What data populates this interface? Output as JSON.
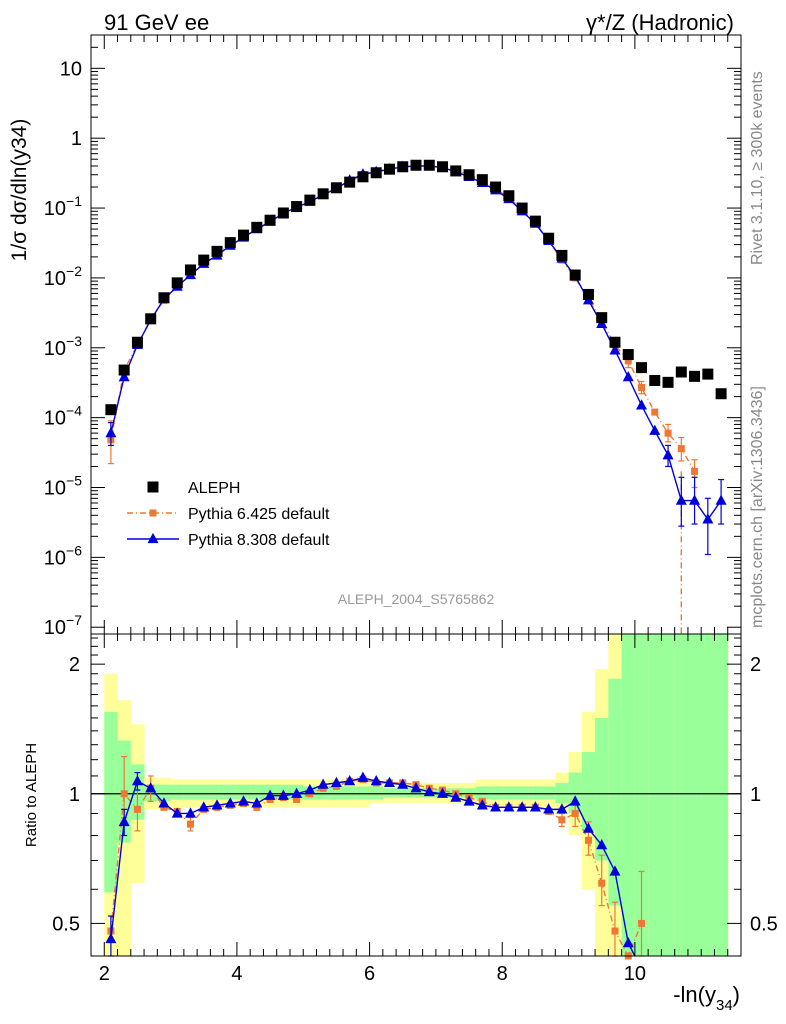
{
  "header": {
    "left": "91 GeV ee",
    "right_prefix": "γ*/Z",
    "right_suffix": "(Hadronic)"
  },
  "side": {
    "rivet_label": "Rivet 3.1.10, ≥ 300k events",
    "source_label": "mcplots.cern.ch [arXiv:1306.3436]"
  },
  "colors": {
    "aleph": "#000000",
    "pythia6": "#ee7733",
    "pythia8": "#0000dd",
    "band_inner": "#99ff99",
    "band_outer": "#ffff99"
  },
  "chart_data": [
    {
      "type": "scatter",
      "panel": "main",
      "ylabel": "1/σ dσ/dln(y34)",
      "xlim": [
        1.8,
        11.6
      ],
      "ylim": [
        8e-08,
        30
      ],
      "yscale": "log",
      "analysis_label": "ALEPH_2004_S5765862",
      "legend_position": "lower-left",
      "yticks": [
        {
          "v": 1e-07,
          "base": "10",
          "exp": "−7"
        },
        {
          "v": 1e-06,
          "base": "10",
          "exp": "−6"
        },
        {
          "v": 1e-05,
          "base": "10",
          "exp": "−5"
        },
        {
          "v": 0.0001,
          "base": "10",
          "exp": "−4"
        },
        {
          "v": 0.001,
          "base": "10",
          "exp": "−3"
        },
        {
          "v": 0.01,
          "base": "10",
          "exp": "−2"
        },
        {
          "v": 0.1,
          "base": "10",
          "exp": "−1"
        },
        {
          "v": 1,
          "base": "1",
          "exp": ""
        },
        {
          "v": 10,
          "base": "10",
          "exp": ""
        }
      ],
      "x": [
        2.1,
        2.3,
        2.5,
        2.7,
        2.9,
        3.1,
        3.3,
        3.5,
        3.7,
        3.9,
        4.1,
        4.3,
        4.5,
        4.7,
        4.9,
        5.1,
        5.3,
        5.5,
        5.7,
        5.9,
        6.1,
        6.3,
        6.5,
        6.7,
        6.9,
        7.1,
        7.3,
        7.5,
        7.7,
        7.9,
        8.1,
        8.3,
        8.5,
        8.7,
        8.9,
        9.1,
        9.3,
        9.5,
        9.7,
        9.9,
        10.1,
        10.3,
        10.5,
        10.7,
        10.9,
        11.1,
        11.3
      ],
      "series": [
        {
          "name": "ALEPH",
          "marker": "square",
          "values": [
            0.00013,
            0.00048,
            0.0012,
            0.0026,
            0.0052,
            0.0085,
            0.013,
            0.018,
            0.024,
            0.032,
            0.041,
            0.053,
            0.067,
            0.085,
            0.105,
            0.13,
            0.16,
            0.195,
            0.235,
            0.28,
            0.32,
            0.36,
            0.39,
            0.41,
            0.41,
            0.39,
            0.34,
            0.3,
            0.255,
            0.2,
            0.15,
            0.1,
            0.065,
            0.037,
            0.021,
            0.011,
            0.0058,
            0.0027,
            0.0012,
            0.0008,
            0.00052,
            0.00034,
            0.00032,
            0.00045,
            0.00039,
            0.00042,
            0.00022
          ]
        },
        {
          "name": "Pythia 6.425 default",
          "marker": "square-small",
          "values": [
            4.8e-05,
            0.00048,
            0.0011,
            0.0026,
            0.0048,
            0.0077,
            0.011,
            0.016,
            0.022,
            0.03,
            0.038,
            0.05,
            0.064,
            0.083,
            0.1,
            0.125,
            0.155,
            0.195,
            0.24,
            0.3,
            0.33,
            0.37,
            0.4,
            0.42,
            0.41,
            0.4,
            0.35,
            0.3,
            0.25,
            0.19,
            0.14,
            0.095,
            0.062,
            0.034,
            0.018,
            0.01,
            0.005,
            0.0024,
            0.0011,
            0.00065,
            0.00027,
            0.00012,
            6e-05,
            3.6e-05,
            1.7e-05,
            null,
            null
          ]
        },
        {
          "name": "Pythia 8.308 default",
          "marker": "triangle",
          "values": [
            6e-05,
            0.00038,
            0.0011,
            0.0025,
            0.005,
            0.0075,
            0.011,
            0.016,
            0.021,
            0.029,
            0.038,
            0.05,
            0.064,
            0.084,
            0.103,
            0.123,
            0.155,
            0.19,
            0.25,
            0.305,
            0.33,
            0.36,
            0.39,
            0.4,
            0.4,
            0.38,
            0.33,
            0.28,
            0.23,
            0.18,
            0.135,
            0.09,
            0.06,
            0.034,
            0.019,
            0.0105,
            0.0048,
            0.0022,
            0.00092,
            0.00038,
            0.00015,
            6.5e-05,
            2.9e-05,
            6.5e-06,
            6.5e-06,
            3.5e-06,
            6.5e-06
          ]
        }
      ]
    },
    {
      "type": "scatter",
      "panel": "ratio",
      "ylabel": "Ratio to ALEPH",
      "xlabel_main": "-ln(y",
      "xlabel_sub": "34",
      "xlabel_close": ")",
      "xlim": [
        1.8,
        11.6
      ],
      "ylim": [
        0.42,
        2.35
      ],
      "yscale": "log",
      "xticks": [
        "2",
        "4",
        "6",
        "8",
        "10"
      ],
      "yticks": [
        "0.5",
        "1",
        "2"
      ],
      "x": [
        2.1,
        2.3,
        2.5,
        2.7,
        2.9,
        3.1,
        3.3,
        3.5,
        3.7,
        3.9,
        4.1,
        4.3,
        4.5,
        4.7,
        4.9,
        5.1,
        5.3,
        5.5,
        5.7,
        5.9,
        6.1,
        6.3,
        6.5,
        6.7,
        6.9,
        7.1,
        7.3,
        7.5,
        7.7,
        7.9,
        8.1,
        8.3,
        8.5,
        8.7,
        8.9,
        9.1,
        9.3,
        9.5,
        9.7,
        9.9,
        10.1,
        10.3,
        10.5,
        10.7,
        10.9,
        11.1,
        11.3
      ],
      "band_inner": [
        [
          0.59,
          1.55
        ],
        [
          0.77,
          1.33
        ],
        [
          0.87,
          1.17
        ],
        [
          0.96,
          1.05
        ],
        [
          0.96,
          1.05
        ],
        [
          0.97,
          1.05
        ],
        [
          0.97,
          1.05
        ],
        [
          0.97,
          1.05
        ],
        [
          0.97,
          1.05
        ],
        [
          0.97,
          1.05
        ],
        [
          0.97,
          1.05
        ],
        [
          0.97,
          1.05
        ],
        [
          0.97,
          1.05
        ],
        [
          0.97,
          1.05
        ],
        [
          0.97,
          1.05
        ],
        [
          0.97,
          1.04
        ],
        [
          0.97,
          1.04
        ],
        [
          0.97,
          1.04
        ],
        [
          0.97,
          1.04
        ],
        [
          0.97,
          1.04
        ],
        [
          0.97,
          1.04
        ],
        [
          0.98,
          1.03
        ],
        [
          0.98,
          1.03
        ],
        [
          0.98,
          1.03
        ],
        [
          0.98,
          1.03
        ],
        [
          0.98,
          1.03
        ],
        [
          0.98,
          1.03
        ],
        [
          0.98,
          1.03
        ],
        [
          0.97,
          1.04
        ],
        [
          0.97,
          1.04
        ],
        [
          0.97,
          1.04
        ],
        [
          0.97,
          1.04
        ],
        [
          0.97,
          1.04
        ],
        [
          0.97,
          1.04
        ],
        [
          0.95,
          1.06
        ],
        [
          0.9,
          1.12
        ],
        [
          0.82,
          1.25
        ],
        [
          0.7,
          1.5
        ],
        [
          0.55,
          1.85
        ],
        [
          0.42,
          2.35
        ],
        [
          0.42,
          2.35
        ],
        [
          0.42,
          2.35
        ],
        [
          0.42,
          2.35
        ],
        [
          0.42,
          2.35
        ],
        [
          0.42,
          2.35
        ],
        [
          0.42,
          2.35
        ],
        [
          0.42,
          2.35
        ]
      ],
      "band_outer": [
        [
          0.42,
          1.9
        ],
        [
          0.42,
          1.65
        ],
        [
          0.62,
          1.45
        ],
        [
          0.92,
          1.09
        ],
        [
          0.92,
          1.09
        ],
        [
          0.93,
          1.08
        ],
        [
          0.93,
          1.08
        ],
        [
          0.93,
          1.08
        ],
        [
          0.93,
          1.08
        ],
        [
          0.93,
          1.08
        ],
        [
          0.93,
          1.08
        ],
        [
          0.93,
          1.08
        ],
        [
          0.93,
          1.08
        ],
        [
          0.93,
          1.08
        ],
        [
          0.93,
          1.08
        ],
        [
          0.93,
          1.08
        ],
        [
          0.93,
          1.08
        ],
        [
          0.93,
          1.08
        ],
        [
          0.93,
          1.08
        ],
        [
          0.93,
          1.08
        ],
        [
          0.95,
          1.06
        ],
        [
          0.95,
          1.06
        ],
        [
          0.95,
          1.06
        ],
        [
          0.95,
          1.06
        ],
        [
          0.95,
          1.06
        ],
        [
          0.95,
          1.06
        ],
        [
          0.95,
          1.06
        ],
        [
          0.95,
          1.06
        ],
        [
          0.93,
          1.08
        ],
        [
          0.93,
          1.08
        ],
        [
          0.93,
          1.08
        ],
        [
          0.93,
          1.08
        ],
        [
          0.93,
          1.08
        ],
        [
          0.93,
          1.08
        ],
        [
          0.9,
          1.12
        ],
        [
          0.8,
          1.25
        ],
        [
          0.6,
          1.55
        ],
        [
          0.42,
          1.95
        ],
        [
          0.42,
          2.35
        ],
        [
          0.42,
          2.35
        ],
        [
          0.42,
          2.35
        ],
        [
          0.42,
          2.35
        ],
        [
          0.42,
          2.35
        ],
        [
          0.42,
          2.35
        ],
        [
          0.42,
          2.35
        ],
        [
          0.42,
          2.35
        ],
        [
          0.42,
          2.35
        ]
      ],
      "series": [
        {
          "name": "Pythia 6.425 default",
          "values": [
            0.48,
            1.0,
            0.92,
            1.03,
            0.93,
            0.91,
            0.85,
            0.92,
            0.93,
            0.94,
            0.95,
            0.93,
            0.97,
            0.98,
            0.97,
            1.0,
            1.03,
            1.04,
            1.07,
            1.08,
            1.06,
            1.06,
            1.06,
            1.05,
            1.03,
            1.02,
            1.0,
            0.98,
            0.96,
            0.93,
            0.93,
            0.93,
            0.93,
            0.91,
            0.87,
            0.9,
            0.78,
            0.62,
            0.48,
            0.42,
            0.5,
            null,
            null,
            null,
            null,
            null,
            null
          ]
        },
        {
          "name": "Pythia 8.308 default",
          "values": [
            0.46,
            0.86,
            1.07,
            1.03,
            0.95,
            0.9,
            0.9,
            0.93,
            0.94,
            0.95,
            0.96,
            0.95,
            0.99,
            0.99,
            1.0,
            1.02,
            1.05,
            1.06,
            1.07,
            1.09,
            1.07,
            1.06,
            1.05,
            1.03,
            1.01,
            1.0,
            0.98,
            0.96,
            0.94,
            0.93,
            0.93,
            0.93,
            0.93,
            0.92,
            0.92,
            0.96,
            0.83,
            0.76,
            0.66,
            0.45,
            null,
            null,
            null,
            null,
            null,
            null,
            null
          ]
        }
      ]
    }
  ]
}
